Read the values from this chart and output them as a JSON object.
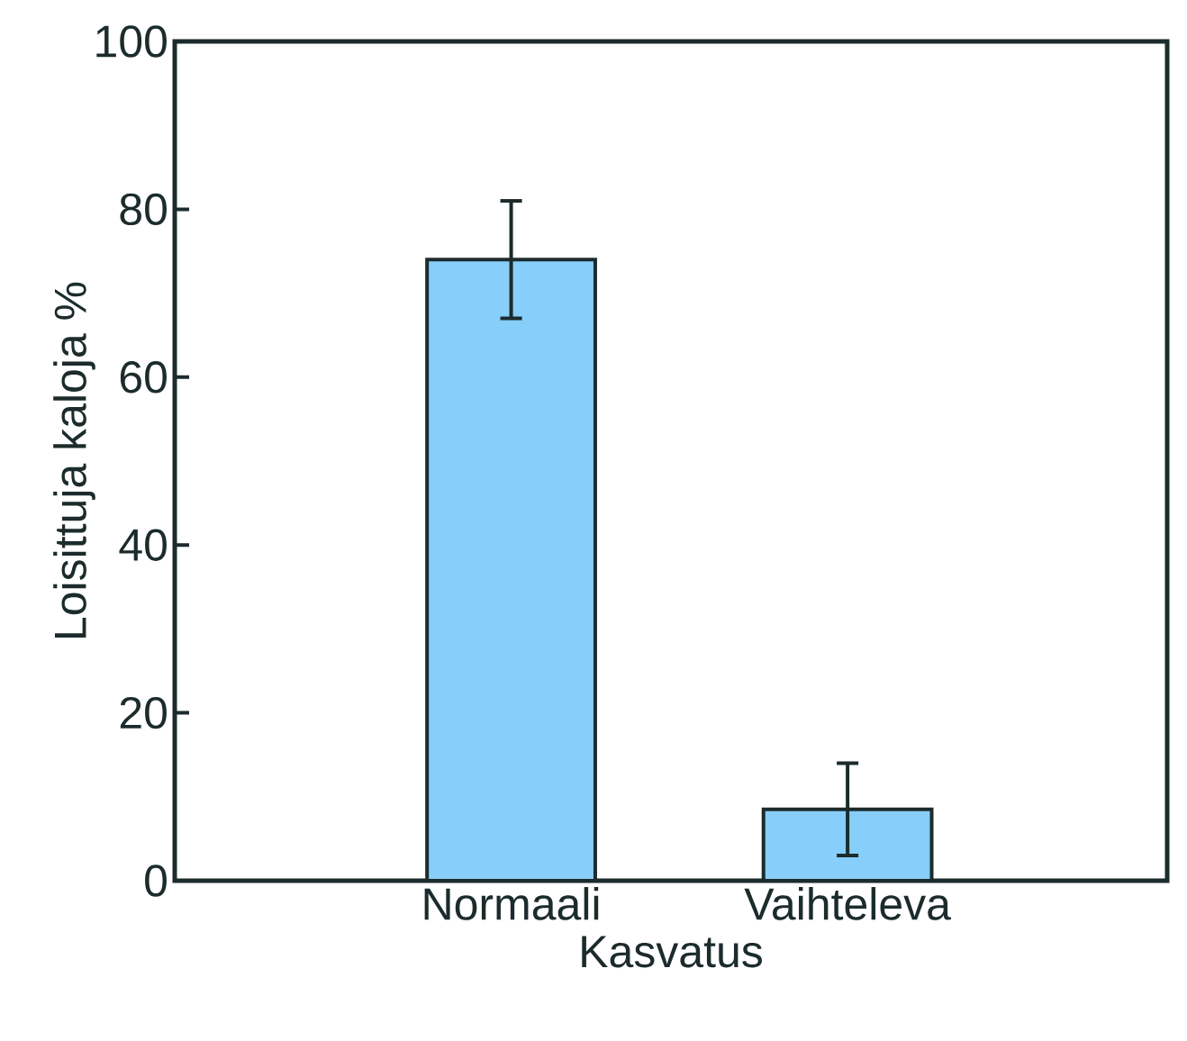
{
  "chart_data": {
    "type": "bar",
    "xlabel": "Kasvatus",
    "ylabel": "Loisittuja kaloja %",
    "categories": [
      "Normaali",
      "Vaihteleva"
    ],
    "values": [
      74,
      8.5
    ],
    "errors": [
      7,
      5.5
    ],
    "color": "#87cefa",
    "ylim": [
      0,
      100
    ],
    "yticks": [
      0,
      20,
      40,
      60,
      80,
      100
    ],
    "grid": false
  }
}
